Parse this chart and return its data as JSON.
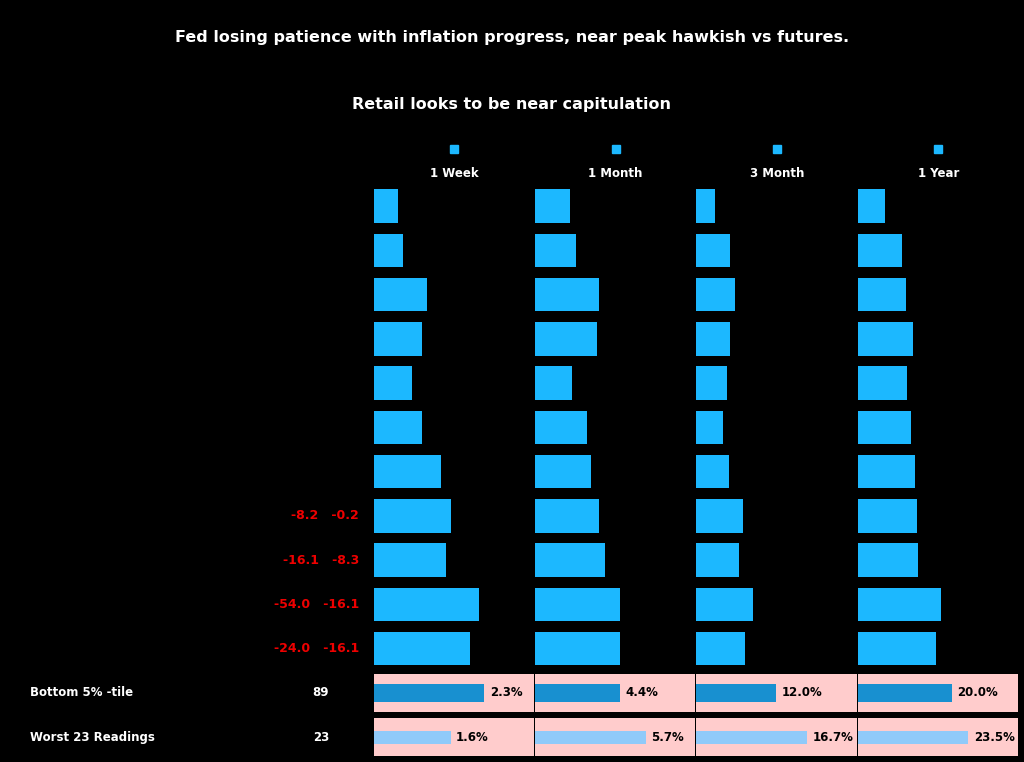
{
  "title_lines": [
    "Fed losing patience with inflation progress, near peak hawkish vs futures.",
    "Retail looks to be near capitulation"
  ],
  "col_headers": [
    "1 Week",
    "1 Month",
    "3 Month",
    "1 Year"
  ],
  "col_header_color": "#1CB8FF",
  "row_label_left_pairs": [
    [
      null,
      null
    ],
    [
      null,
      null
    ],
    [
      null,
      null
    ],
    [
      null,
      null
    ],
    [
      null,
      null
    ],
    [
      null,
      null
    ],
    [
      null,
      null
    ],
    [
      -8.2,
      -0.2
    ],
    [
      -16.1,
      -8.3
    ],
    [
      -54.0,
      -16.1
    ],
    [
      -24.0,
      -16.1
    ]
  ],
  "bottom_rows": [
    {
      "label": "Bottom 5% -tile",
      "n": 89,
      "values": [
        2.3,
        4.4,
        12.0,
        20.0
      ]
    },
    {
      "label": "Worst 23 Readings",
      "n": 23,
      "values": [
        1.6,
        5.7,
        16.7,
        23.5
      ]
    }
  ],
  "data": [
    [
      0.5,
      1.8,
      2.8,
      5.8
    ],
    [
      0.6,
      2.1,
      5.1,
      9.5
    ],
    [
      1.1,
      3.3,
      5.9,
      10.2
    ],
    [
      1.0,
      3.2,
      5.1,
      11.8
    ],
    [
      0.8,
      1.9,
      4.7,
      10.4
    ],
    [
      1.0,
      2.7,
      4.0,
      11.4
    ],
    [
      1.4,
      2.9,
      5.0,
      12.2
    ],
    [
      1.6,
      3.3,
      7.1,
      12.7
    ],
    [
      1.5,
      3.6,
      6.4,
      12.8
    ],
    [
      2.2,
      4.4,
      8.6,
      17.8
    ],
    [
      2.0,
      4.4,
      7.4,
      16.6
    ]
  ],
  "bar_color": "#1CB8FF",
  "bar_color_bottom5": "#1890D0",
  "bar_color_worst23": "#90CAF9",
  "bg_color_normal": "#E0E0E8",
  "bg_color_highlight": "#FFCCCC",
  "red_bg": "#EE0000",
  "black_bg": "#000000",
  "white_text": "#FFFFFF",
  "black_text": "#111111",
  "red_text": "#EE0000",
  "n_cols": 4,
  "figsize": [
    10.24,
    7.62
  ],
  "dpi": 100
}
